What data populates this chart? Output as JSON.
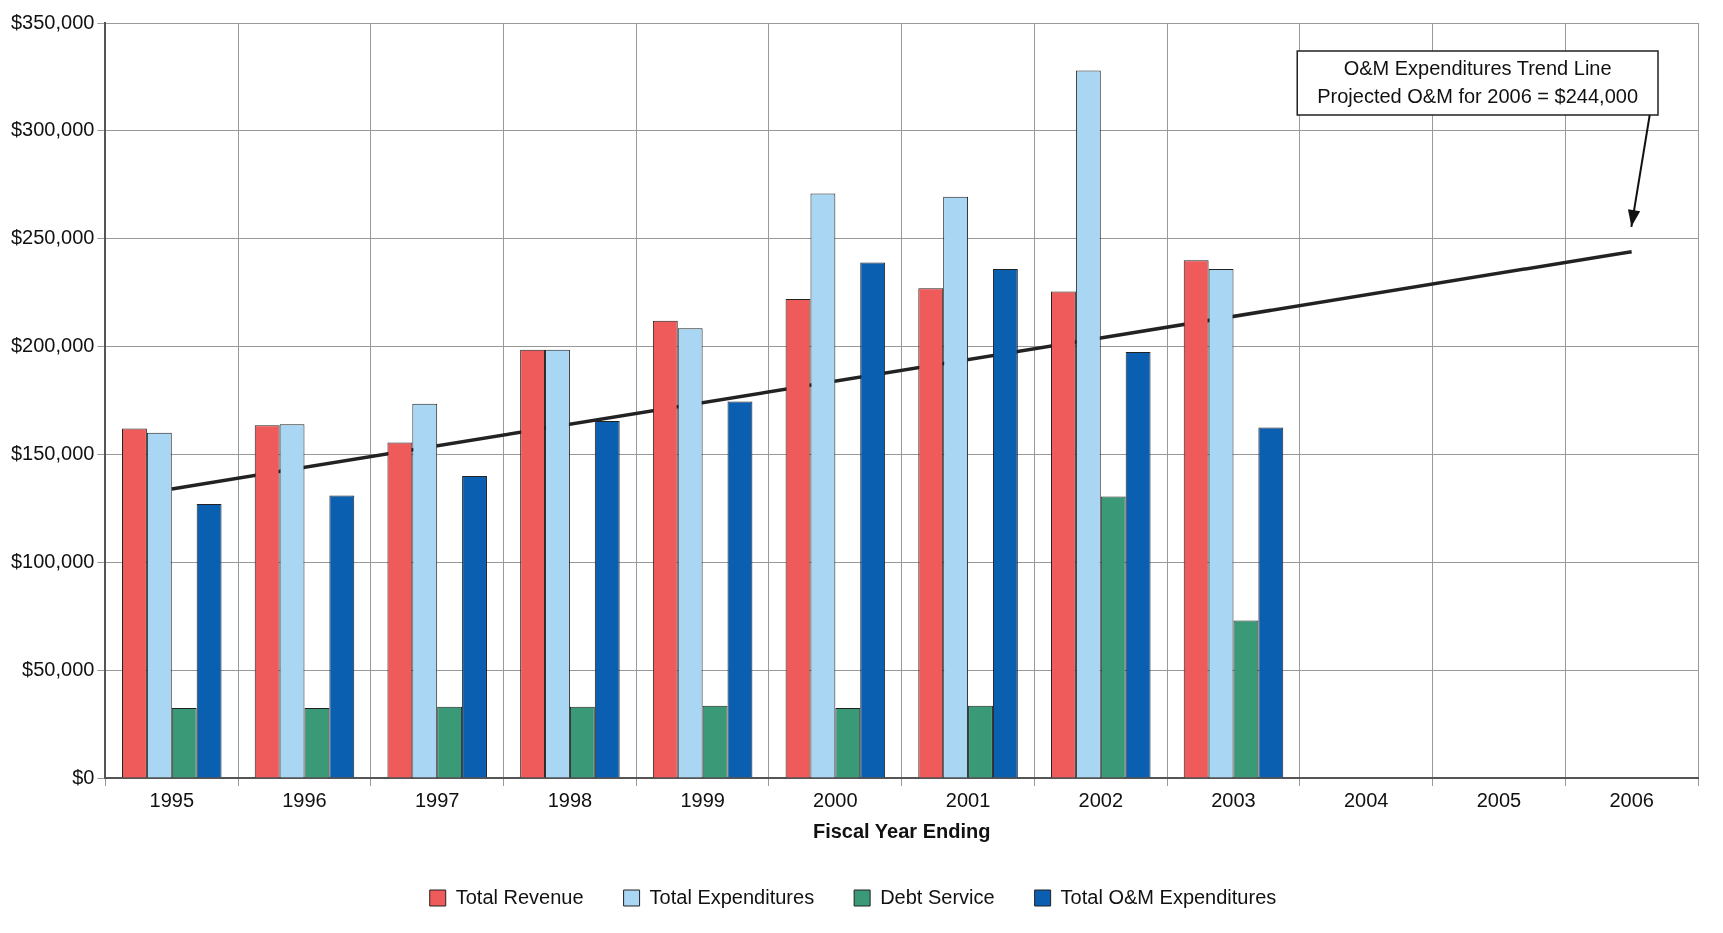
{
  "chart_data": {
    "type": "bar",
    "xlabel": "Fiscal Year Ending",
    "categories": [
      "1995",
      "1996",
      "1997",
      "1998",
      "1999",
      "2000",
      "2001",
      "2002",
      "2003",
      "2004",
      "2005",
      "2006"
    ],
    "series": [
      {
        "name": "Total Revenue",
        "color": "#ef5a5a",
        "values": [
          162000,
          163500,
          155500,
          198500,
          212000,
          222000,
          227000,
          225500,
          240000,
          null,
          null,
          null
        ]
      },
      {
        "name": "Total Expenditures",
        "color": "#a9d6f2",
        "values": [
          160000,
          164000,
          173500,
          198500,
          208500,
          271000,
          269500,
          328000,
          236000,
          null,
          null,
          null
        ]
      },
      {
        "name": "Debt Service",
        "color": "#3a9a78",
        "values": [
          32500,
          32500,
          33000,
          33000,
          33500,
          32500,
          33500,
          130500,
          73000,
          null,
          null,
          null
        ]
      },
      {
        "name": "Total O&M Expenditures",
        "color": "#0b5fb0",
        "values": [
          127000,
          131000,
          140000,
          165500,
          174500,
          239000,
          236000,
          197500,
          162500,
          null,
          null,
          null
        ]
      },
      {
        "type": "line",
        "color": "#222222",
        "values": [
          134000,
          null,
          null,
          null,
          null,
          null,
          null,
          null,
          null,
          null,
          null,
          244000
        ]
      }
    ],
    "ylim": [
      0,
      350000
    ],
    "yticks": [
      {
        "value": 0,
        "label": "$0"
      },
      {
        "value": 50000,
        "label": "$50,000"
      },
      {
        "value": 100000,
        "label": "$100,000"
      },
      {
        "value": 150000,
        "label": "$150,000"
      },
      {
        "value": 200000,
        "label": "$200,000"
      },
      {
        "value": 250000,
        "label": "$250,000"
      },
      {
        "value": 300000,
        "label": "$300,000"
      },
      {
        "value": 350000,
        "label": "$350,000"
      }
    ],
    "grid": true,
    "legend": "bottom",
    "marker": "none",
    "annotations": [
      "O&M Expenditures Trend Line\nProjected O&M for 2006 = $244,000"
    ]
  }
}
